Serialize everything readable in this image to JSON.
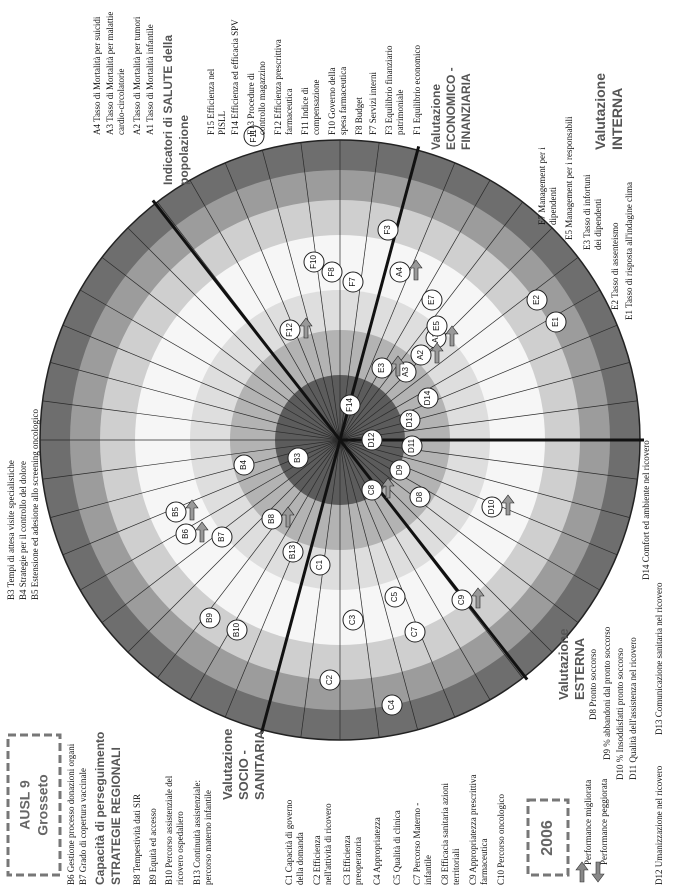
{
  "header": {
    "ausl": [
      "AUSL 9",
      "Grosseto"
    ],
    "year": "2006"
  },
  "titles": [
    [
      "Capacità di perseguimento",
      "STRATEGIE REGIONALI"
    ],
    [
      "Valutazione",
      "SOCIO -",
      "SANITARIA"
    ],
    [
      "Valutazione",
      "ESTERNA"
    ],
    [
      "Valutazione",
      "INTERNA"
    ],
    [
      "Valutazione",
      "ECONOMICO -",
      "FINANZIARIA"
    ],
    [
      "Indicatori di SALUTE della",
      "popolazione"
    ]
  ],
  "labels": [
    [
      "B3 Tempi di attesa visite specialistiche"
    ],
    [
      "B4 Strategie per il controllo del dolore"
    ],
    [
      "B5 Estensione ed adesione allo screening oncologico"
    ],
    [
      "B6 Gestione processo donazioni organi"
    ],
    [
      "B7 Grado di copertura vaccinale"
    ],
    [
      "B8 Tempestività dati SIR"
    ],
    [
      "B9 Equità ed accesso"
    ],
    [
      "B10 Percorso assistenziale del",
      "ricovero ospedaliero"
    ],
    [
      "B13 Continuità assistenziale:",
      "percorso materno infantile"
    ],
    [
      "C1 Capacità di governo",
      "della domanda"
    ],
    [
      "C2 Efficienza",
      "nell'attività di ricovero"
    ],
    [
      "C3 Efficienza",
      "preoperatoria"
    ],
    [
      "C4 Appropriatezza"
    ],
    [
      "C5 Qualità di clinica"
    ],
    [
      "C7 Percorso Materno -",
      "infantile"
    ],
    [
      "C8 Efficacia sanitaria azioni",
      "territoriali"
    ],
    [
      "C9 Appropriatezza prescrittiva",
      "farmaceutica"
    ],
    [
      "C10 Percorso oncologico"
    ],
    [
      "D8 Pronto soccorso"
    ],
    [
      "D9 % abbandoni dal pronto soccorso"
    ],
    [
      "D10 % Insoddisfatti pronto soccorso"
    ],
    [
      "D11 Qualità dell'assistenza nel ricovero"
    ],
    [
      "D12 Umanizzazione nel ricovero"
    ],
    [
      "D13 Comunicazione sanitaria nel ricovero"
    ],
    [
      "D14 Comfort ed ambiente nel ricovero"
    ],
    [
      "E1 Tasso di risposta all'indagine clima"
    ],
    [
      "E2 Tasso di assenteismo"
    ],
    [
      "E3 Tasso di infortuni",
      "dei dipendenti"
    ],
    [
      "E5 Management per i responsabili"
    ],
    [
      "E7 Management per i",
      "dipendenti"
    ],
    [
      "A4 Tasso di Mortalità per suicidi"
    ],
    [
      "A3 Tasso di Mortalità per malattie",
      "cardio-circolatorie"
    ],
    [
      "A2 Tasso di Mortalità per tumori"
    ],
    [
      "A1 Tasso di Mortalità infantile"
    ],
    [
      "F15 Efficienza nel",
      "PISLL"
    ],
    [
      "F14 Efficienza ed efficacia SPV"
    ],
    [
      "F13 Procedure di",
      "controllo magazzino"
    ],
    [
      "F12 Efficienza prescrittiva",
      "farmaceutica"
    ],
    [
      "F11 Indice di",
      "compensazione"
    ],
    [
      "F10 Governo della",
      "spesa farmaceutica"
    ],
    [
      "F8 Budget"
    ],
    [
      "F7 Servizi interni"
    ],
    [
      "F3 Equilibrio finanziario",
      "patrimoniale"
    ],
    [
      "F1 Equilibrio economico"
    ]
  ],
  "markers": [
    "A1",
    "A2",
    "A3",
    "A4",
    "F3",
    "F7",
    "F8",
    "F10",
    "F11",
    "F12",
    "F14",
    "E1",
    "E2",
    "E3",
    "E5",
    "E7",
    "D8",
    "D9",
    "D10",
    "D11",
    "D12",
    "D13",
    "D14",
    "C1",
    "C2",
    "C3",
    "C4",
    "C5",
    "C7",
    "C8",
    "C9",
    "B3",
    "B4",
    "B5",
    "B6",
    "B7",
    "B8",
    "B9",
    "B10",
    "B13"
  ],
  "legend": [
    "Performance migliorata",
    "Performance peggiorata"
  ]
}
